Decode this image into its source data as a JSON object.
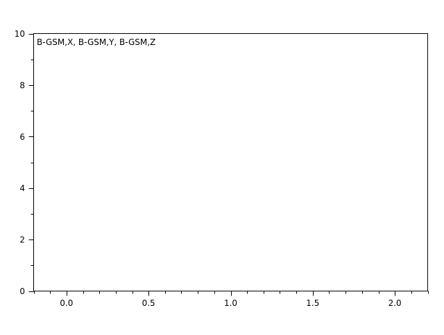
{
  "chart_data": {
    "type": "line",
    "title": "",
    "xlabel": "",
    "ylabel": "",
    "xlim": [
      -0.2,
      2.2
    ],
    "ylim": [
      0,
      10
    ],
    "x_major_ticks": [
      0.0,
      0.5,
      1.0,
      1.5,
      2.0
    ],
    "x_tick_labels": [
      "0.0",
      "0.5",
      "1.0",
      "1.5",
      "2.0"
    ],
    "x_minor_step": 0.1,
    "y_major_ticks": [
      0,
      2,
      4,
      6,
      8,
      10
    ],
    "y_tick_labels": [
      "0",
      "2",
      "4",
      "6",
      "8",
      "10"
    ],
    "y_minor_step": 1,
    "grid": false,
    "legend_text": "B-GSM,X, B-GSM,Y, B-GSM,Z",
    "legend_placement": "top-left",
    "series": []
  }
}
